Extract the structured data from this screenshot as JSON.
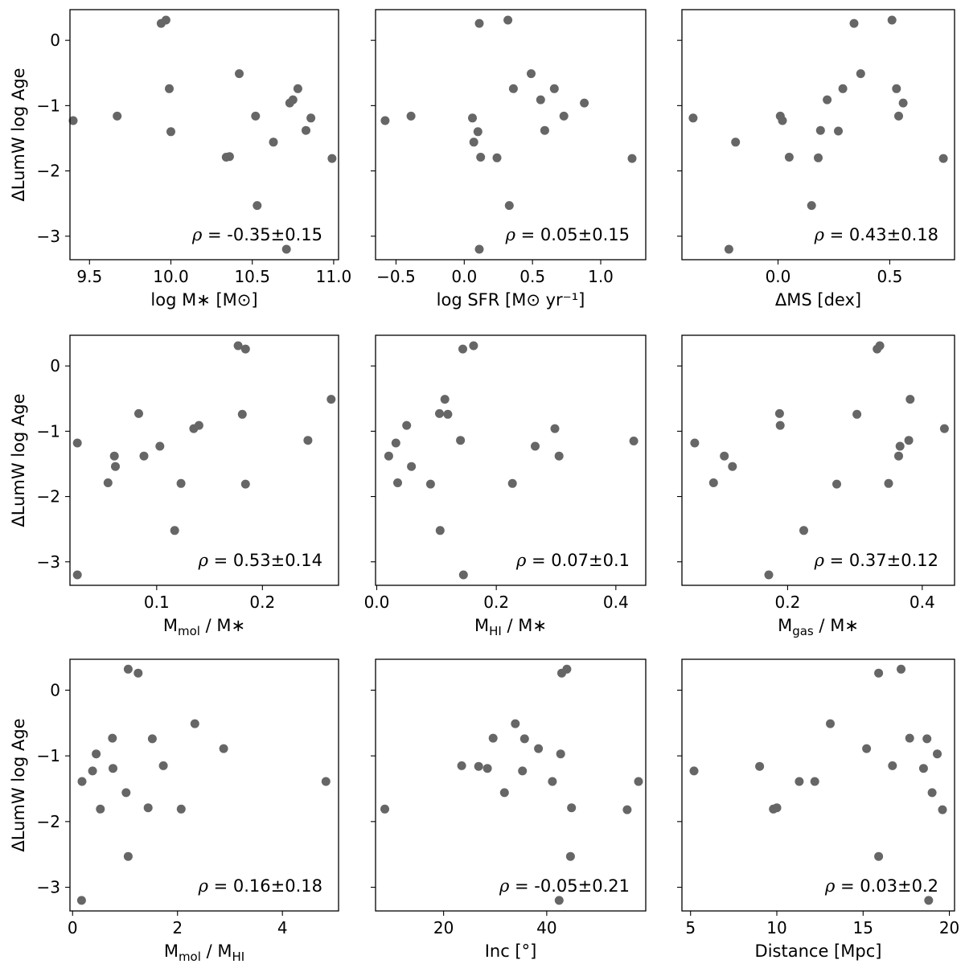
{
  "figure": {
    "point_color": "#666666",
    "frame_color": "#000000"
  },
  "chart_data": [
    {
      "type": "scatter",
      "xlabel": "log M∗ [M⊙]",
      "ylabel": "ΔLumW log Age",
      "annotation": "ρ = -0.35±0.15",
      "xlim": [
        9.38,
        11.03
      ],
      "ylim": [
        -3.36,
        0.47
      ],
      "xticks": [
        9.5,
        10.0,
        10.5,
        11.0
      ],
      "xtick_labels": [
        "9.5",
        "10.0",
        "10.5",
        "11.0"
      ],
      "yticks": [
        0,
        -1,
        -2,
        -3
      ],
      "ytick_labels": [
        "0",
        "−1",
        "−2",
        "−3"
      ],
      "x": [
        9.4,
        9.67,
        9.94,
        9.97,
        9.99,
        10.0,
        10.34,
        10.36,
        10.42,
        10.52,
        10.53,
        10.63,
        10.71,
        10.73,
        10.75,
        10.78,
        10.83,
        10.86,
        10.99
      ],
      "y": [
        -1.23,
        -1.16,
        0.26,
        0.31,
        -0.74,
        -1.4,
        -1.79,
        -1.78,
        -0.51,
        -1.16,
        -2.53,
        -1.56,
        -3.2,
        -0.96,
        -0.91,
        -0.74,
        -1.38,
        -1.19,
        -1.81
      ]
    },
    {
      "type": "scatter",
      "xlabel": "log SFR [M⊙ yr⁻¹]",
      "ylabel": "",
      "annotation": "ρ = 0.05±0.15",
      "xlim": [
        -0.65,
        1.33
      ],
      "ylim": [
        -3.36,
        0.47
      ],
      "xticks": [
        -0.5,
        0.0,
        0.5,
        1.0
      ],
      "xtick_labels": [
        "−0.5",
        "0.0",
        "0.5",
        "1.0"
      ],
      "yticks": [
        0,
        -1,
        -2,
        -3
      ],
      "ytick_labels": [
        "",
        "",
        "",
        ""
      ],
      "x": [
        -0.58,
        -0.39,
        0.06,
        0.07,
        0.1,
        0.11,
        0.12,
        0.11,
        0.24,
        0.32,
        0.33,
        0.36,
        0.49,
        0.56,
        0.59,
        0.66,
        0.73,
        0.88,
        1.23
      ],
      "y": [
        -1.23,
        -1.16,
        -1.19,
        -1.56,
        -1.4,
        -3.2,
        -1.79,
        0.26,
        -1.8,
        0.31,
        -2.53,
        -0.74,
        -0.51,
        -0.91,
        -1.38,
        -0.74,
        -1.16,
        -0.96,
        -1.81
      ]
    },
    {
      "type": "scatter",
      "xlabel": "ΔMS [dex]",
      "ylabel": "",
      "annotation": "ρ = 0.43±0.18",
      "xlim": [
        -0.43,
        0.79
      ],
      "ylim": [
        -3.36,
        0.47
      ],
      "xticks": [
        0.0,
        0.5
      ],
      "xtick_labels": [
        "0.0",
        "0.5"
      ],
      "yticks": [
        0,
        -1,
        -2,
        -3
      ],
      "ytick_labels": [
        "",
        "",
        "",
        ""
      ],
      "x": [
        -0.38,
        -0.22,
        -0.19,
        0.01,
        0.02,
        0.05,
        0.15,
        0.18,
        0.19,
        0.22,
        0.27,
        0.29,
        0.34,
        0.37,
        0.51,
        0.53,
        0.54,
        0.56,
        0.74
      ],
      "y": [
        -1.19,
        -3.2,
        -1.56,
        -1.16,
        -1.23,
        -1.79,
        -2.53,
        -1.8,
        -1.38,
        -0.91,
        -1.39,
        -0.74,
        0.26,
        -0.51,
        0.31,
        -0.74,
        -1.16,
        -0.96,
        -1.81
      ]
    },
    {
      "type": "scatter",
      "xlabel": "M_mol / M∗",
      "ylabel": "ΔLumW log Age",
      "annotation": "ρ = 0.53±0.14",
      "xlim": [
        0.018,
        0.272
      ],
      "ylim": [
        -3.36,
        0.47
      ],
      "xticks": [
        0.1,
        0.2
      ],
      "xtick_labels": [
        "0.1",
        "0.2"
      ],
      "yticks": [
        0,
        -1,
        -2,
        -3
      ],
      "ytick_labels": [
        "0",
        "−1",
        "−2",
        "−3"
      ],
      "x": [
        0.025,
        0.025,
        0.054,
        0.06,
        0.061,
        0.083,
        0.088,
        0.103,
        0.117,
        0.123,
        0.135,
        0.14,
        0.177,
        0.181,
        0.184,
        0.184,
        0.243,
        0.265
      ],
      "y": [
        -1.18,
        -3.2,
        -1.79,
        -1.38,
        -1.54,
        -0.73,
        -1.38,
        -1.23,
        -2.52,
        -1.8,
        -0.96,
        -0.91,
        0.31,
        -0.74,
        0.26,
        -1.81,
        -1.14,
        -0.51
      ]
    },
    {
      "type": "scatter",
      "xlabel": "M_HI / M∗",
      "ylabel": "",
      "annotation": "ρ = 0.07±0.1",
      "xlim": [
        -0.002,
        0.45
      ],
      "ylim": [
        -3.36,
        0.47
      ],
      "xticks": [
        0.0,
        0.2,
        0.4
      ],
      "xtick_labels": [
        "0.0",
        "0.2",
        "0.4"
      ],
      "yticks": [
        0,
        -1,
        -2,
        -3
      ],
      "ytick_labels": [
        "",
        "",
        "",
        ""
      ],
      "x": [
        0.02,
        0.032,
        0.035,
        0.05,
        0.058,
        0.09,
        0.105,
        0.106,
        0.114,
        0.119,
        0.14,
        0.144,
        0.145,
        0.162,
        0.227,
        0.265,
        0.298,
        0.305,
        0.43
      ],
      "y": [
        -1.38,
        -1.18,
        -1.79,
        -0.91,
        -1.54,
        -1.81,
        -0.73,
        -2.52,
        -0.51,
        -0.74,
        -1.14,
        0.26,
        -3.2,
        0.31,
        -1.8,
        -1.23,
        -0.96,
        -1.38,
        -1.15
      ]
    },
    {
      "type": "scatter",
      "xlabel": "M_gas / M∗",
      "ylabel": "",
      "annotation": "ρ = 0.37±0.12",
      "xlim": [
        0.043,
        0.448
      ],
      "ylim": [
        -3.36,
        0.47
      ],
      "xticks": [
        0.2,
        0.4
      ],
      "xtick_labels": [
        "0.2",
        "0.4"
      ],
      "yticks": [
        0,
        -1,
        -2,
        -3
      ],
      "ytick_labels": [
        "",
        "",
        "",
        ""
      ],
      "x": [
        0.062,
        0.09,
        0.106,
        0.118,
        0.172,
        0.188,
        0.189,
        0.224,
        0.273,
        0.303,
        0.333,
        0.337,
        0.35,
        0.365,
        0.367,
        0.38,
        0.382,
        0.433
      ],
      "y": [
        -1.18,
        -1.79,
        -1.38,
        -1.54,
        -3.2,
        -0.73,
        -0.91,
        -2.52,
        -1.81,
        -0.74,
        0.26,
        0.31,
        -1.8,
        -1.38,
        -1.23,
        -1.14,
        -0.51,
        -0.96
      ]
    },
    {
      "type": "scatter",
      "xlabel": "M_mol / M_HI",
      "ylabel": "ΔLumW log Age",
      "annotation": "ρ = 0.16±0.18",
      "xlim": [
        -0.05,
        5.07
      ],
      "ylim": [
        -3.36,
        0.47
      ],
      "xticks": [
        0,
        2,
        4
      ],
      "xtick_labels": [
        "0",
        "2",
        "4"
      ],
      "yticks": [
        0,
        -1,
        -2,
        -3
      ],
      "ytick_labels": [
        "0",
        "−1",
        "−2",
        "−3"
      ],
      "x": [
        0.18,
        0.17,
        0.38,
        0.45,
        0.53,
        0.76,
        0.77,
        1.02,
        1.06,
        1.06,
        1.25,
        1.44,
        1.52,
        1.73,
        2.07,
        2.33,
        2.88,
        4.83
      ],
      "y": [
        -1.39,
        -3.2,
        -1.23,
        -0.97,
        -1.81,
        -0.73,
        -1.19,
        -1.56,
        -2.53,
        0.32,
        0.26,
        -1.79,
        -0.74,
        -1.15,
        -1.81,
        -0.51,
        -0.89,
        -1.39
      ]
    },
    {
      "type": "scatter",
      "xlabel": "Inc [°]",
      "ylabel": "",
      "annotation": "ρ = -0.05±0.21",
      "xlim": [
        6.8,
        59.2
      ],
      "ylim": [
        -3.36,
        0.47
      ],
      "xticks": [
        20,
        40
      ],
      "xtick_labels": [
        "20",
        "40"
      ],
      "yticks": [
        0,
        -1,
        -2,
        -3
      ],
      "ytick_labels": [
        "",
        "",
        "",
        ""
      ],
      "x": [
        8.6,
        23.5,
        26.8,
        28.5,
        29.6,
        31.8,
        33.9,
        35.3,
        35.7,
        38.4,
        41.1,
        42.4,
        42.7,
        42.9,
        43.9,
        44.6,
        44.8,
        55.6,
        57.8
      ],
      "y": [
        -1.81,
        -1.15,
        -1.16,
        -1.19,
        -0.73,
        -1.56,
        -0.51,
        -1.23,
        -0.74,
        -0.89,
        -1.39,
        -3.2,
        -0.97,
        0.26,
        0.32,
        -2.53,
        -1.79,
        -1.82,
        -1.39
      ]
    },
    {
      "type": "scatter",
      "xlabel": "Distance [Mpc]",
      "ylabel": "",
      "annotation": "ρ = 0.03±0.2",
      "xlim": [
        4.5,
        20.3
      ],
      "ylim": [
        -3.36,
        0.47
      ],
      "xticks": [
        5,
        10,
        15,
        20
      ],
      "xtick_labels": [
        "5",
        "10",
        "15",
        "20"
      ],
      "yticks": [
        0,
        -1,
        -2,
        -3
      ],
      "ytick_labels": [
        "",
        "",
        "",
        ""
      ],
      "x": [
        5.2,
        9.0,
        9.8,
        10.0,
        11.3,
        12.2,
        13.1,
        15.2,
        15.9,
        15.9,
        16.7,
        17.2,
        17.7,
        18.5,
        18.7,
        18.8,
        19.0,
        19.3,
        19.6
      ],
      "y": [
        -1.23,
        -1.16,
        -1.81,
        -1.79,
        -1.39,
        -1.39,
        -0.51,
        -0.89,
        -2.53,
        0.26,
        -1.15,
        0.32,
        -0.73,
        -1.19,
        -0.74,
        -3.2,
        -1.56,
        -0.97,
        -1.82
      ]
    }
  ]
}
